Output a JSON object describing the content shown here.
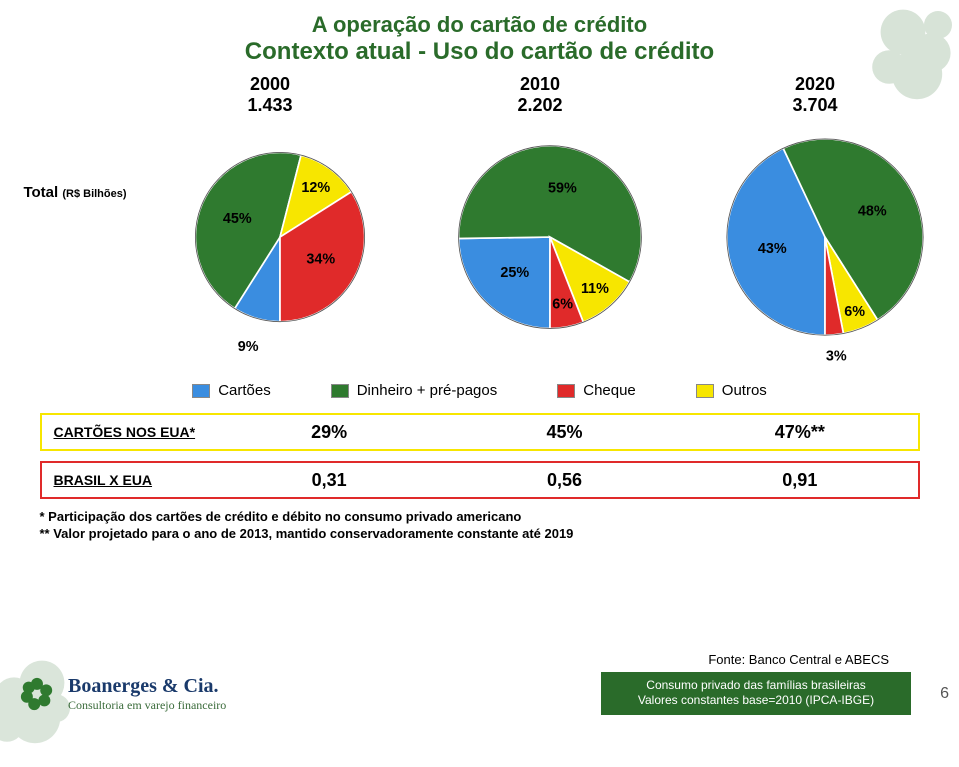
{
  "title": {
    "line1": "A operação do cartão de crédito",
    "line2": "Contexto atual - Uso do cartão de crédito",
    "color": "#2a6b2a",
    "fontsize1": 22,
    "fontsize2": 24
  },
  "total_row": {
    "label": "Total",
    "sub": "(R$ Bilhões)"
  },
  "years": [
    "2000",
    "2010",
    "2020"
  ],
  "totals": [
    "1.433",
    "2.202",
    "3.704"
  ],
  "colors": {
    "cartoes": "#3a8de0",
    "dinheiro": "#2f7a2f",
    "cheque": "#e02a2a",
    "outros": "#f7e600",
    "slice_border": "#ffffff",
    "pie_outline": "#555555"
  },
  "pies": [
    {
      "year_idx": 0,
      "radius": 100,
      "slices": [
        {
          "key": "cartoes",
          "value": 9,
          "label": "9%",
          "label_offset_r": 1.35
        },
        {
          "key": "dinheiro",
          "value": 45,
          "label": "45%",
          "label_offset_r": 0.55
        },
        {
          "key": "outros",
          "value": 12,
          "label": "12%",
          "label_offset_r": 0.72
        },
        {
          "key": "cheque",
          "value": 34,
          "label": "34%",
          "label_offset_r": 0.55
        }
      ]
    },
    {
      "year_idx": 1,
      "radius": 108,
      "slices": [
        {
          "key": "cartoes",
          "value": 25,
          "label": "25%",
          "label_offset_r": 0.55
        },
        {
          "key": "dinheiro",
          "value": 59,
          "label": "59%",
          "label_offset_r": 0.55
        },
        {
          "key": "outros",
          "value": 11,
          "label": "11%",
          "label_offset_r": 0.75
        },
        {
          "key": "cheque",
          "value": 6,
          "label": "6%",
          "label_offset_r": 0.75
        }
      ]
    },
    {
      "year_idx": 2,
      "radius": 116,
      "slices": [
        {
          "key": "cartoes",
          "value": 43,
          "label": "43%",
          "label_offset_r": 0.55
        },
        {
          "key": "dinheiro",
          "value": 48,
          "label": "48%",
          "label_offset_r": 0.55
        },
        {
          "key": "outros",
          "value": 6,
          "label": "6%",
          "label_offset_r": 0.82
        },
        {
          "key": "cheque",
          "value": 3,
          "label": "3%",
          "label_offset_r": 1.22
        }
      ]
    }
  ],
  "legend": [
    {
      "key": "cartoes",
      "label": "Cartões"
    },
    {
      "key": "dinheiro",
      "label": "Dinheiro + pré-pagos"
    },
    {
      "key": "cheque",
      "label": "Cheque"
    },
    {
      "key": "outros",
      "label": "Outros"
    }
  ],
  "tables": [
    {
      "label": "CARTÕES NOS EUA*",
      "border_color": "#f7e600",
      "cells": [
        "29%",
        "45%",
        "47%**"
      ]
    },
    {
      "label": "BRASIL X EUA",
      "border_color": "#e02a2a",
      "cells": [
        "0,31",
        "0,56",
        "0,91"
      ]
    }
  ],
  "footnotes": {
    "f1": "* Participação dos cartões de crédito e débito no consumo privado americano",
    "f2": "** Valor projetado para o ano de 2013, mantido conservadoramente constante até 2019"
  },
  "source": "Fonte: Banco Central e ABECS",
  "consumption_box": {
    "line1": "Consumo privado das famílias brasileiras",
    "line2": "Valores constantes base=2010 (IPCA-IBGE)",
    "bg": "#2a6b2a"
  },
  "page_num": "6",
  "logo": {
    "name": "Boanerges & Cia.",
    "tagline": "Consultoria em varejo financeiro"
  },
  "bg_deco_color": "#5a8a5a"
}
